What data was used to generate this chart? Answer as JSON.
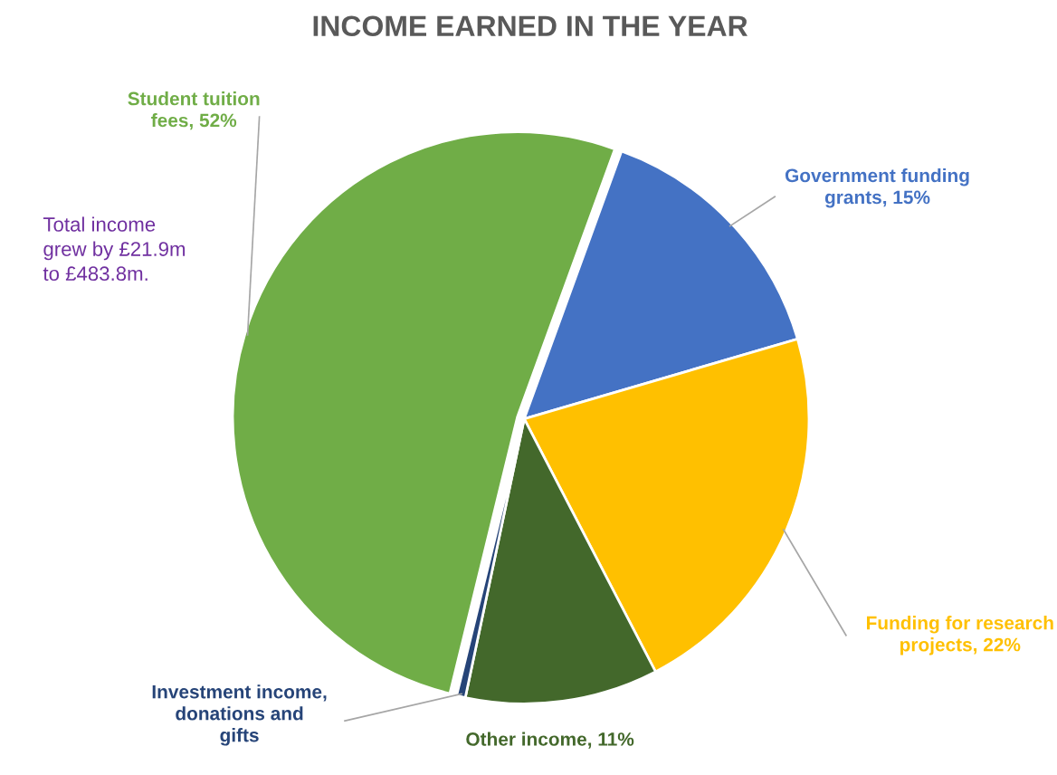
{
  "chart_data": {
    "type": "pie",
    "title": "INCOME EARNED IN THE YEAR",
    "categories": [
      "Government funding grants",
      "Funding for research projects",
      "Other income",
      "Investment income, donations and gifts",
      "Student tuition fees"
    ],
    "values": [
      15,
      22,
      11,
      0.5,
      52
    ],
    "value_labels": [
      "15%",
      "22%",
      "11%",
      null,
      "52%"
    ],
    "colors": [
      "#4472c4",
      "#ffc000",
      "#43682b",
      "#264478",
      "#70ad47"
    ],
    "annotations": [
      "Total income grew by £21.9m to £483.8m."
    ],
    "legend": false
  }
}
